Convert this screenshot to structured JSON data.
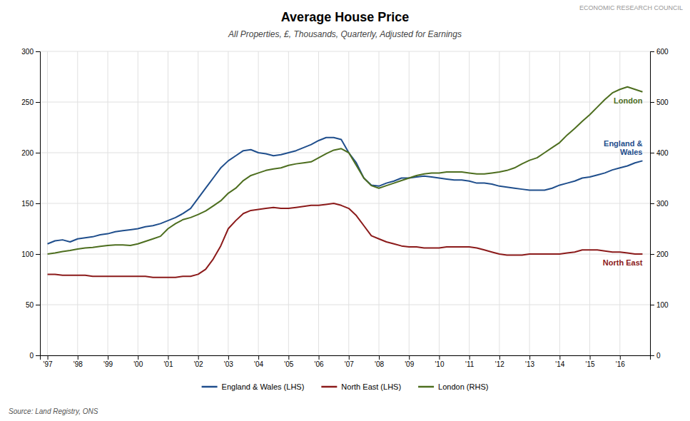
{
  "chart_data": {
    "type": "line",
    "title": "Average House Price",
    "subtitle": "All Properties, £, Thousands, Quarterly, Adjusted for Earnings",
    "source": "Source: Land Registry, ONS",
    "watermark": "ECONOMIC RESEARCH COUNCIL",
    "categories": [
      "'97",
      null,
      null,
      null,
      "'98",
      null,
      null,
      null,
      "'99",
      null,
      null,
      null,
      "'00",
      null,
      null,
      null,
      "'01",
      null,
      null,
      null,
      "'02",
      null,
      null,
      null,
      "'03",
      null,
      null,
      null,
      "'04",
      null,
      null,
      null,
      "'05",
      null,
      null,
      null,
      "'06",
      null,
      null,
      null,
      "'07",
      null,
      null,
      null,
      "'08",
      null,
      null,
      null,
      "'09",
      null,
      null,
      null,
      "'10",
      null,
      null,
      null,
      "'11",
      null,
      null,
      null,
      "'12",
      null,
      null,
      null,
      "'13",
      null,
      null,
      null,
      "'14",
      null,
      null,
      null,
      "'15",
      null,
      null,
      null,
      "'16",
      null,
      null,
      null
    ],
    "ylim": [
      0,
      300
    ],
    "yticks": [
      0,
      50,
      100,
      150,
      200,
      250,
      300
    ],
    "y2lim": [
      0,
      600
    ],
    "y2ticks": [
      0,
      100,
      200,
      300,
      400,
      500,
      600
    ],
    "grid": true,
    "legend": "bottom",
    "series": [
      {
        "name": "England & Wales (LHS)",
        "color": "#1f4e8c",
        "values": [
          110,
          113,
          114,
          112,
          115,
          116,
          117,
          119,
          120,
          122,
          123,
          124,
          125,
          127,
          128,
          130,
          133,
          136,
          140,
          145,
          155,
          165,
          175,
          185,
          192,
          197,
          202,
          203,
          200,
          199,
          197,
          198,
          200,
          202,
          205,
          208,
          212,
          215,
          215,
          213,
          200,
          190,
          175,
          168,
          167,
          170,
          172,
          175,
          175,
          176,
          177,
          176,
          175,
          174,
          173,
          173,
          172,
          170,
          170,
          169,
          167,
          166,
          165,
          164,
          163,
          163,
          163,
          165,
          168,
          170,
          172,
          175,
          176,
          178,
          180,
          183,
          185,
          187,
          190,
          192
        ]
      },
      {
        "name": "North East (LHS)",
        "color": "#8b1a1a",
        "values": [
          80,
          80,
          79,
          79,
          79,
          79,
          78,
          78,
          78,
          78,
          78,
          78,
          78,
          78,
          77,
          77,
          77,
          77,
          78,
          78,
          80,
          85,
          95,
          108,
          125,
          133,
          140,
          143,
          144,
          145,
          146,
          145,
          145,
          146,
          147,
          148,
          148,
          149,
          150,
          148,
          145,
          138,
          128,
          118,
          115,
          112,
          110,
          108,
          107,
          107,
          106,
          106,
          106,
          107,
          107,
          107,
          107,
          106,
          104,
          102,
          100,
          99,
          99,
          99,
          100,
          100,
          100,
          100,
          100,
          101,
          102,
          104,
          104,
          104,
          103,
          102,
          102,
          101,
          100,
          100
        ]
      },
      {
        "name": "London (RHS)",
        "color": "#4d6e1f",
        "axis": "y2",
        "values": [
          200,
          202,
          205,
          207,
          210,
          212,
          213,
          215,
          217,
          218,
          218,
          217,
          220,
          225,
          230,
          235,
          250,
          260,
          268,
          272,
          278,
          285,
          295,
          305,
          320,
          330,
          345,
          355,
          360,
          365,
          368,
          370,
          375,
          378,
          380,
          382,
          390,
          398,
          405,
          408,
          400,
          375,
          350,
          335,
          330,
          335,
          340,
          345,
          350,
          355,
          358,
          360,
          360,
          362,
          362,
          362,
          360,
          358,
          358,
          360,
          362,
          365,
          370,
          378,
          385,
          390,
          400,
          410,
          420,
          435,
          448,
          462,
          475,
          490,
          505,
          518,
          525,
          530,
          525,
          520
        ]
      }
    ],
    "annotations": [
      {
        "text": "England &\nWales",
        "series": "England & Wales (LHS)"
      },
      {
        "text": "North East",
        "series": "North East (LHS)"
      },
      {
        "text": "London",
        "series": "London (RHS)"
      }
    ]
  }
}
